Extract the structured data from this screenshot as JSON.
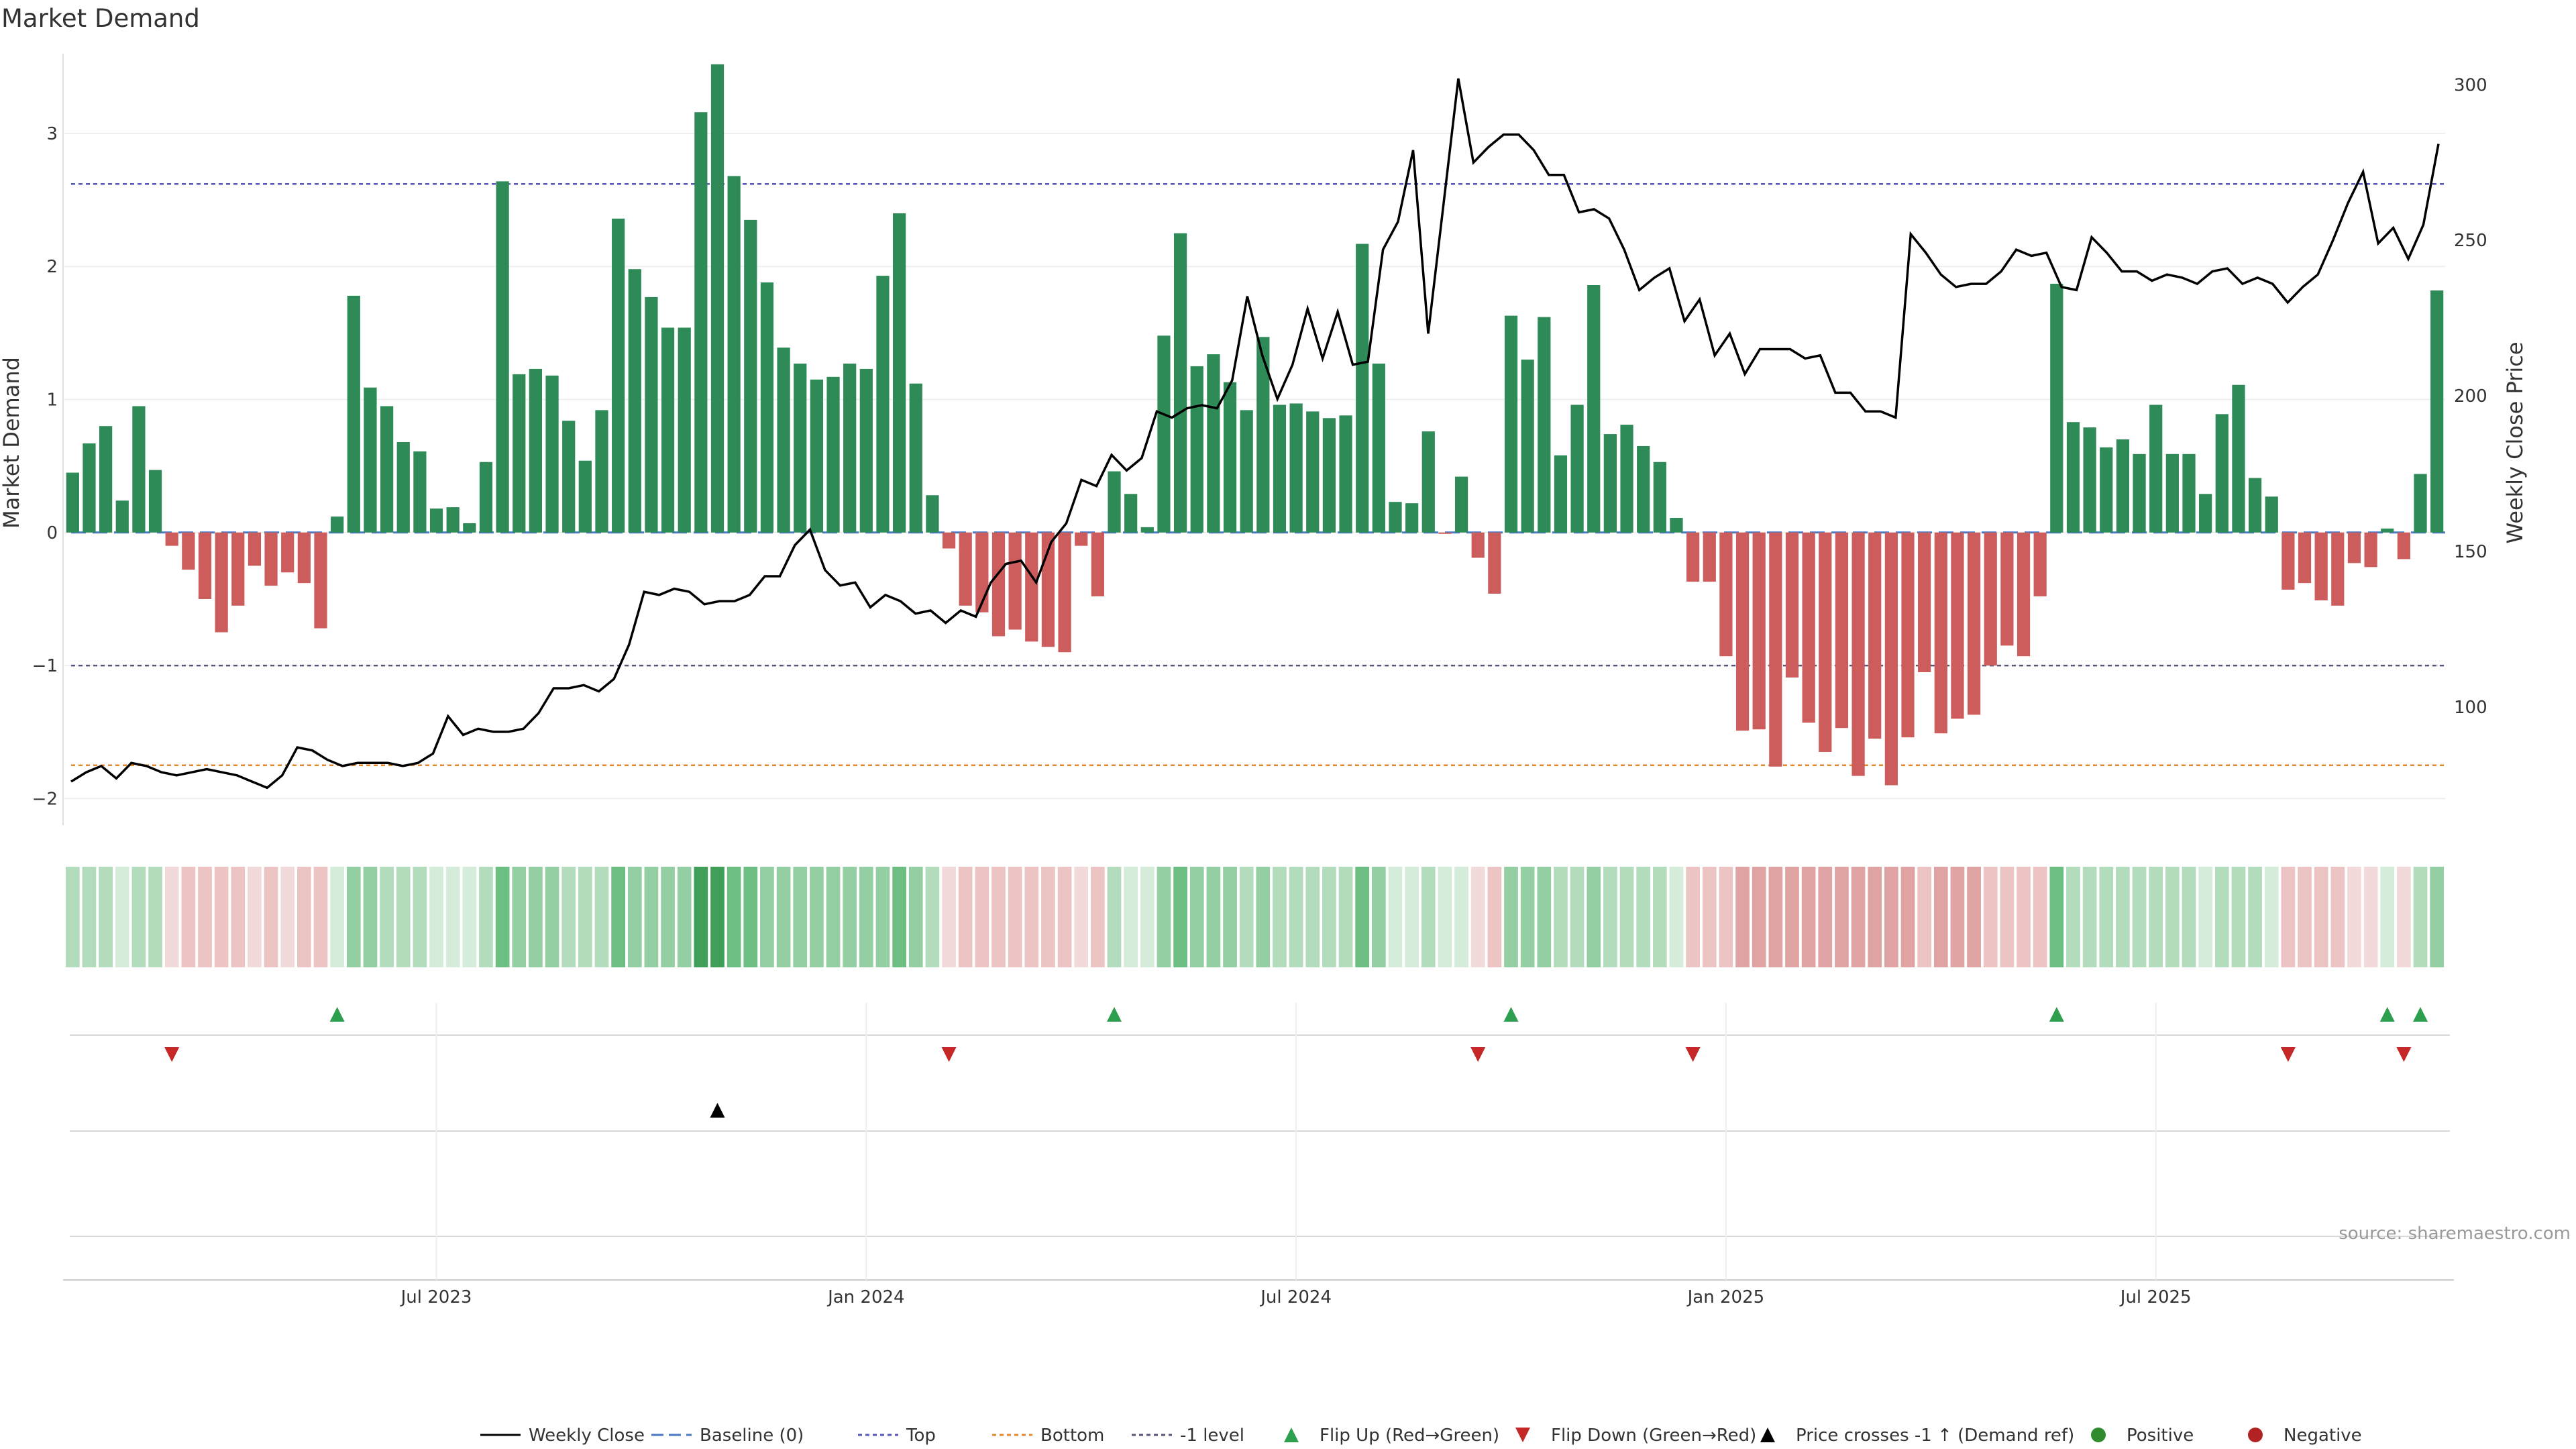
{
  "chart_data": {
    "type": "bar",
    "title": "Market Demand",
    "ylabel": "Market Demand",
    "y2label": "Weekly Close Price",
    "ylim": [
      -2.2,
      3.6
    ],
    "y2lim": [
      62,
      310
    ],
    "yticks": [
      -2,
      -1,
      0,
      1,
      2,
      3
    ],
    "y2ticks": [
      100,
      150,
      200,
      250,
      300
    ],
    "xticks": [
      "Jul 2023",
      "Jan 2024",
      "Jul 2024",
      "Jan 2025",
      "Jul 2025"
    ],
    "xtick_positions": [
      22,
      48,
      74,
      100,
      126
    ],
    "reference_lines": [
      {
        "name": "Baseline (0)",
        "value": 0,
        "color": "#4a78c2"
      },
      {
        "name": "Top",
        "value": 2.62,
        "color": "#5555bb"
      },
      {
        "name": "Bottom",
        "value": -1.75,
        "color": "#e08a2c"
      },
      {
        "name": "-1 level",
        "value": -1,
        "color": "#555577"
      }
    ],
    "demand": [
      0.45,
      0.67,
      0.8,
      0.24,
      0.95,
      0.47,
      -0.1,
      -0.28,
      -0.5,
      -0.75,
      -0.55,
      -0.25,
      -0.4,
      -0.3,
      -0.38,
      -0.72,
      0.12,
      1.78,
      1.09,
      0.95,
      0.68,
      0.61,
      0.18,
      0.19,
      0.07,
      0.53,
      2.64,
      1.19,
      1.23,
      1.18,
      0.84,
      0.54,
      0.92,
      2.36,
      1.98,
      1.77,
      1.54,
      1.54,
      3.16,
      3.52,
      2.68,
      2.35,
      1.88,
      1.39,
      1.27,
      1.15,
      1.17,
      1.27,
      1.23,
      1.93,
      2.4,
      1.12,
      0.28,
      -0.12,
      -0.55,
      -0.6,
      -0.78,
      -0.73,
      -0.82,
      -0.86,
      -0.9,
      -0.1,
      -0.48,
      0.46,
      0.29,
      0.04,
      1.48,
      2.25,
      1.25,
      1.34,
      1.13,
      0.92,
      1.47,
      0.96,
      0.97,
      0.91,
      0.86,
      0.88,
      2.17,
      1.27,
      0.23,
      0.22,
      0.76,
      -0.01,
      0.42,
      -0.19,
      -0.46,
      1.63,
      1.3,
      1.62,
      0.58,
      0.96,
      1.86,
      0.74,
      0.81,
      0.65,
      0.53,
      0.11,
      -0.37,
      -0.37,
      -0.93,
      -1.49,
      -1.48,
      -1.76,
      -1.09,
      -1.43,
      -1.65,
      -1.47,
      -1.83,
      -1.55,
      -1.9,
      -1.54,
      -1.05,
      -1.51,
      -1.4,
      -1.37,
      -1.0,
      -0.85,
      -0.93,
      -0.48,
      1.87,
      0.83,
      0.79,
      0.64,
      0.7,
      0.59,
      0.96,
      0.59,
      0.59,
      0.29,
      0.89,
      1.11,
      0.41,
      0.27,
      -0.43,
      -0.38,
      -0.51,
      -0.55,
      -0.23,
      -0.26,
      0.03,
      -0.2,
      0.44,
      1.82
    ],
    "price_index_start": 0.5,
    "price": [
      76,
      79,
      81,
      77,
      82,
      81,
      79,
      78,
      79,
      80,
      79,
      78,
      76,
      74,
      78,
      87,
      86,
      83,
      81,
      82,
      82,
      82,
      81,
      82,
      85,
      97,
      91,
      93,
      92,
      92,
      93,
      98,
      106,
      106,
      107,
      105,
      109,
      120,
      137,
      136,
      138,
      137,
      133,
      134,
      134,
      136,
      142,
      142,
      152,
      157,
      144,
      139,
      140,
      132,
      136,
      134,
      130,
      131,
      127,
      131,
      129,
      140,
      146,
      147,
      140,
      153,
      159,
      173,
      171,
      181,
      176,
      180,
      195,
      193,
      196,
      197,
      196,
      205,
      232,
      213,
      199,
      210,
      228,
      212,
      227,
      210,
      211,
      247,
      256,
      279,
      220,
      261,
      302,
      275,
      280,
      284,
      284,
      279,
      271,
      271,
      259,
      260,
      257,
      247,
      234,
      238,
      241,
      224,
      231,
      213,
      220,
      207,
      215,
      215,
      215,
      212,
      213,
      201,
      201,
      195,
      195,
      193,
      252,
      246,
      239,
      235,
      236,
      236,
      240,
      247,
      245,
      246,
      235,
      234,
      251,
      246,
      240,
      240,
      237,
      239,
      238,
      236,
      240,
      241,
      236,
      238,
      236,
      230,
      235,
      239,
      250,
      262,
      272,
      249,
      254,
      244,
      255,
      281
    ],
    "color_strip": [
      2,
      2,
      2,
      1,
      2,
      2,
      -1,
      -2,
      -2,
      -2,
      -2,
      -1,
      -2,
      -1,
      -2,
      -2,
      1,
      3,
      3,
      2,
      2,
      2,
      1,
      1,
      1,
      2,
      4,
      3,
      3,
      3,
      2,
      2,
      2,
      4,
      3,
      3,
      3,
      3,
      5,
      5,
      4,
      4,
      3,
      3,
      3,
      3,
      3,
      3,
      3,
      3,
      4,
      3,
      2,
      -1,
      -2,
      -2,
      -2,
      -2,
      -2,
      -2,
      -2,
      -1,
      -2,
      2,
      1,
      1,
      3,
      4,
      3,
      3,
      3,
      2,
      3,
      2,
      2,
      2,
      2,
      2,
      4,
      3,
      1,
      1,
      2,
      1,
      1,
      -1,
      -2,
      3,
      3,
      3,
      2,
      2,
      3,
      2,
      2,
      2,
      2,
      1,
      -2,
      -2,
      -2,
      -3,
      -3,
      -3,
      -3,
      -3,
      -3,
      -3,
      -3,
      -3,
      -3,
      -3,
      -2,
      -3,
      -3,
      -3,
      -2,
      -2,
      -2,
      -2,
      4,
      2,
      2,
      2,
      2,
      2,
      2,
      2,
      2,
      1,
      2,
      2,
      2,
      1,
      -2,
      -2,
      -2,
      -2,
      -1,
      -1,
      1,
      -1,
      2,
      3
    ],
    "flip_up": [
      16,
      63,
      87,
      120,
      140,
      142
    ],
    "flip_down": [
      6,
      53,
      85,
      98,
      134,
      141
    ],
    "price_cross": [
      39
    ],
    "legend": [
      "Weekly Close",
      "Baseline (0)",
      "Top",
      "Bottom",
      "-1 level",
      "Flip Up (Red→Green)",
      "Flip Down (Green→Red)",
      "Price crosses -1 ↑ (Demand ref)",
      "Positive",
      "Negative"
    ],
    "source": "source: sharemaestro.com"
  }
}
